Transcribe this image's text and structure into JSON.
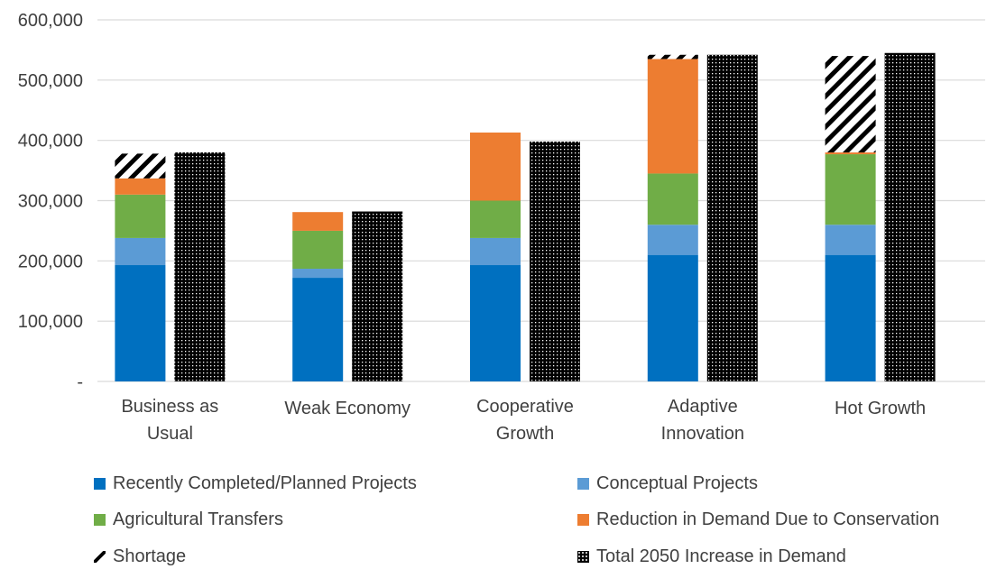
{
  "chart_data": {
    "type": "bar",
    "stacked": true,
    "categories": [
      [
        "Business as",
        "Usual"
      ],
      [
        "Weak Economy"
      ],
      [
        "Cooperative",
        "Growth"
      ],
      [
        "Adaptive",
        "Innovation"
      ],
      [
        "Hot Growth"
      ]
    ],
    "ylim": [
      0,
      600000
    ],
    "yticks": [
      {
        "value": 0,
        "label": "-"
      },
      {
        "value": 100000,
        "label": "100,000"
      },
      {
        "value": 200000,
        "label": "200,000"
      },
      {
        "value": 300000,
        "label": "300,000"
      },
      {
        "value": 400000,
        "label": "400,000"
      },
      {
        "value": 500000,
        "label": "500,000"
      },
      {
        "value": 600000,
        "label": "600,000"
      }
    ],
    "grid": true,
    "legend_position": "bottom",
    "supply_series": [
      {
        "name": "Recently Completed/Planned Projects",
        "color": "#0070c0",
        "pattern": "solid",
        "values": [
          193000,
          172000,
          193000,
          210000,
          210000
        ]
      },
      {
        "name": "Conceptual Projects",
        "color": "#5b9bd5",
        "pattern": "solid",
        "values": [
          45000,
          15000,
          45000,
          50000,
          50000
        ]
      },
      {
        "name": "Agricultural Transfers",
        "color": "#70ad47",
        "pattern": "solid",
        "values": [
          72000,
          63000,
          62000,
          85000,
          117000
        ]
      },
      {
        "name": "Reduction in Demand Due to Conservation",
        "color": "#ed7d31",
        "pattern": "solid",
        "values": [
          27000,
          31000,
          113000,
          190000,
          3000
        ]
      },
      {
        "name": "Shortage",
        "color": "#000000",
        "pattern": "diagonal",
        "values": [
          41000,
          0,
          0,
          7000,
          160000
        ]
      }
    ],
    "demand_series": {
      "name": "Total 2050 Increase in Demand",
      "color": "#000000",
      "pattern": "dots",
      "values": [
        380000,
        282000,
        398000,
        542000,
        545000
      ]
    },
    "legend": [
      {
        "label": "Recently Completed/Planned Projects",
        "color": "#0070c0",
        "pattern": "solid"
      },
      {
        "label": "Conceptual Projects",
        "color": "#5b9bd5",
        "pattern": "solid"
      },
      {
        "label": "Agricultural Transfers",
        "color": "#70ad47",
        "pattern": "solid"
      },
      {
        "label": "Reduction in Demand Due to Conservation",
        "color": "#ed7d31",
        "pattern": "solid"
      },
      {
        "label": "Shortage",
        "color": "#000000",
        "pattern": "diagonal"
      },
      {
        "label": "Total 2050 Increase in Demand",
        "color": "#000000",
        "pattern": "dots"
      }
    ]
  }
}
